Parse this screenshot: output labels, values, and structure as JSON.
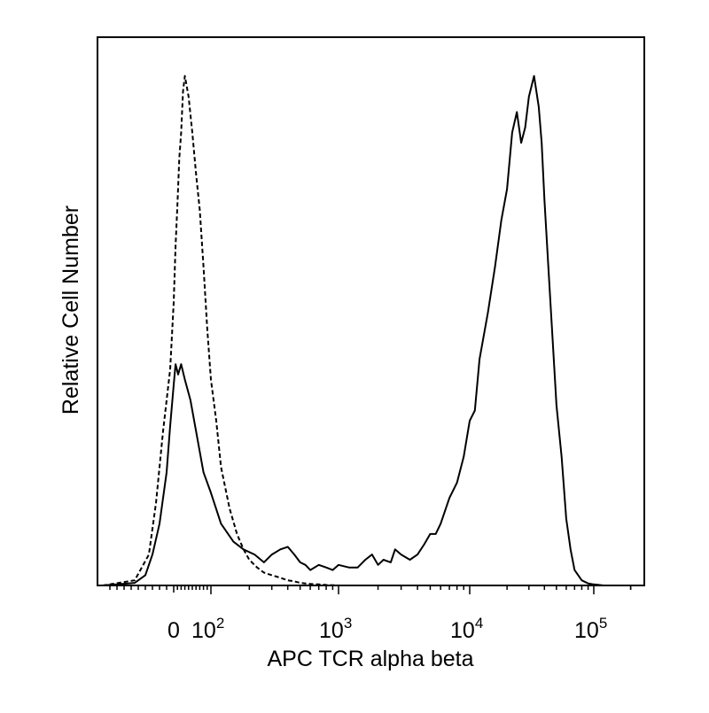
{
  "chart_data": {
    "type": "line",
    "title": "",
    "xlabel": "APC TCR alpha beta",
    "ylabel": "Relative Cell Number",
    "x_scale": "biexponential",
    "xlim": [
      -100,
      250000
    ],
    "ylim": [
      0,
      1.0
    ],
    "grid": false,
    "legend": "none",
    "x_tick_labels": [
      {
        "value": 0,
        "label": "0"
      },
      {
        "value": 100,
        "base": "10",
        "exp": "2"
      },
      {
        "value": 1000,
        "base": "10",
        "exp": "3"
      },
      {
        "value": 10000,
        "base": "10",
        "exp": "4"
      },
      {
        "value": 100000,
        "base": "10",
        "exp": "5"
      }
    ],
    "series": [
      {
        "style": "solid",
        "color": "#000000",
        "x": [
          -100,
          -55,
          -40,
          -30,
          -20,
          -10,
          -5,
          0,
          5,
          12,
          20,
          30,
          45,
          60,
          80,
          100,
          120,
          150,
          180,
          220,
          260,
          300,
          350,
          400,
          450,
          500,
          550,
          600,
          700,
          800,
          900,
          1000,
          1200,
          1400,
          1600,
          1800,
          2000,
          2200,
          2500,
          2700,
          3000,
          3500,
          4000,
          4500,
          5000,
          5500,
          6000,
          7000,
          8000,
          9000,
          10000,
          11000,
          12000,
          14000,
          16000,
          18000,
          20000,
          22000,
          24000,
          26000,
          28000,
          30000,
          33000,
          36000,
          38000,
          40000,
          43000,
          46000,
          50000,
          55000,
          60000,
          65000,
          70000,
          80000,
          90000,
          100000,
          110000,
          120000,
          140000,
          160000,
          200000
        ],
        "y": [
          0,
          0.005,
          0.02,
          0.06,
          0.12,
          0.22,
          0.31,
          0.39,
          0.43,
          0.41,
          0.43,
          0.4,
          0.36,
          0.3,
          0.22,
          0.18,
          0.12,
          0.085,
          0.07,
          0.06,
          0.045,
          0.06,
          0.07,
          0.075,
          0.06,
          0.045,
          0.04,
          0.03,
          0.04,
          0.035,
          0.03,
          0.04,
          0.035,
          0.035,
          0.05,
          0.06,
          0.04,
          0.05,
          0.045,
          0.07,
          0.06,
          0.05,
          0.06,
          0.08,
          0.1,
          0.1,
          0.12,
          0.17,
          0.2,
          0.25,
          0.32,
          0.34,
          0.44,
          0.53,
          0.62,
          0.71,
          0.77,
          0.88,
          0.92,
          0.86,
          0.89,
          0.95,
          0.99,
          0.93,
          0.86,
          0.75,
          0.62,
          0.5,
          0.35,
          0.25,
          0.13,
          0.07,
          0.03,
          0.01,
          0.004,
          0.002,
          0.001,
          0,
          0,
          0,
          0
        ]
      },
      {
        "style": "dashed",
        "color": "#000000",
        "x": [
          -100,
          -55,
          -35,
          -25,
          -15,
          -5,
          0,
          5,
          10,
          15,
          20,
          25,
          30,
          40,
          50,
          60,
          70,
          80,
          90,
          100,
          110,
          120,
          140,
          160,
          180,
          200,
          230,
          260,
          300,
          350,
          400,
          450,
          500,
          600,
          700,
          800,
          1000
        ],
        "y": [
          0,
          0.01,
          0.06,
          0.16,
          0.3,
          0.42,
          0.55,
          0.66,
          0.74,
          0.83,
          0.88,
          0.96,
          0.99,
          0.95,
          0.88,
          0.8,
          0.73,
          0.62,
          0.5,
          0.4,
          0.32,
          0.23,
          0.15,
          0.1,
          0.07,
          0.05,
          0.035,
          0.025,
          0.02,
          0.015,
          0.01,
          0.008,
          0.005,
          0.003,
          0.002,
          0.001,
          0
        ]
      }
    ]
  }
}
